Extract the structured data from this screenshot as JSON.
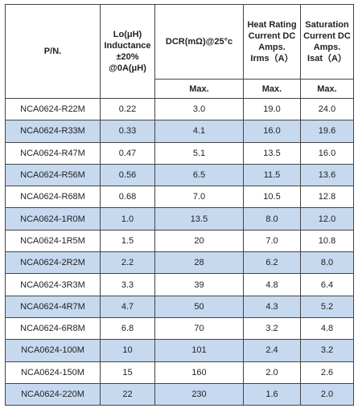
{
  "table": {
    "header": [
      {
        "lines": [
          "P/N."
        ]
      },
      {
        "lines": [
          "Lo(μH)",
          "Inductance",
          "±20%",
          "@0A(μH)"
        ]
      },
      {
        "lines": [
          "DCR(mΩ)@25°c"
        ]
      },
      {
        "lines": [
          "Heat Rating",
          "Current DC",
          "Amps.",
          "Irms（A）"
        ]
      },
      {
        "lines": [
          "Saturation",
          "Current DC",
          "Amps.",
          "Isat（A）"
        ]
      }
    ],
    "subheader": [
      "Max.",
      "Max.",
      "Max."
    ],
    "rows": [
      [
        "NCA0624-R22M",
        "0.22",
        "3.0",
        "19.0",
        "24.0"
      ],
      [
        "NCA0624-R33M",
        "0.33",
        "4.1",
        "16.0",
        "19.6"
      ],
      [
        "NCA0624-R47M",
        "0.47",
        "5.1",
        "13.5",
        "16.0"
      ],
      [
        "NCA0624-R56M",
        "0.56",
        "6.5",
        "11.5",
        "13.6"
      ],
      [
        "NCA0624-R68M",
        "0.68",
        "7.0",
        "10.5",
        "12.8"
      ],
      [
        "NCA0624-1R0M",
        "1.0",
        "13.5",
        "8.0",
        "12.0"
      ],
      [
        "NCA0624-1R5M",
        "1.5",
        "20",
        "7.0",
        "10.8"
      ],
      [
        "NCA0624-2R2M",
        "2.2",
        "28",
        "6.2",
        "8.0"
      ],
      [
        "NCA0624-3R3M",
        "3.3",
        "39",
        "4.8",
        "6.4"
      ],
      [
        "NCA0624-4R7M",
        "4.7",
        "50",
        "4.3",
        "5.2"
      ],
      [
        "NCA0624-6R8M",
        "6.8",
        "70",
        "3.2",
        "4.8"
      ],
      [
        "NCA0624-100M",
        "10",
        "101",
        "2.4",
        "3.2"
      ],
      [
        "NCA0624-150M",
        "15",
        "160",
        "2.0",
        "2.6"
      ],
      [
        "NCA0624-220M",
        "22",
        "230",
        "1.6",
        "2.0"
      ]
    ]
  }
}
